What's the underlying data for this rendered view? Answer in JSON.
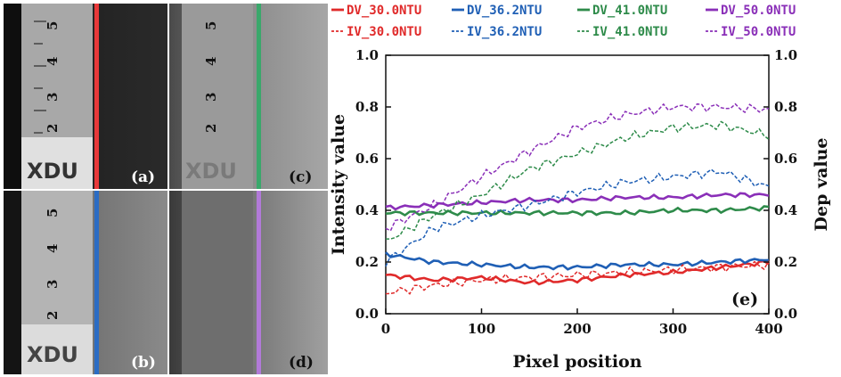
{
  "panels": [
    {
      "label": "(a)",
      "line_color": "#e8393a"
    },
    {
      "label": "(b)",
      "line_color": "#2b6cc4"
    },
    {
      "label": "(c)",
      "line_color": "#3aa86b"
    },
    {
      "label": "(d)",
      "line_color": "#b27ad9"
    }
  ],
  "ruler": {
    "marks": [
      "5",
      "4",
      "3",
      "2"
    ],
    "logo": "XDU"
  },
  "chart_data": {
    "type": "line",
    "panel_label": "(e)",
    "xlabel": "Pixel position",
    "ylabel_left": "Intensity value",
    "ylabel_right": "Dep value",
    "xlim": [
      0,
      400
    ],
    "ylim": [
      0.0,
      1.0
    ],
    "xticks": [
      "0",
      "100",
      "200",
      "300",
      "400"
    ],
    "yticks": [
      "0.0",
      "0.2",
      "0.4",
      "0.6",
      "0.8",
      "1.0"
    ],
    "x": [
      0,
      50,
      100,
      150,
      200,
      250,
      300,
      350,
      400
    ],
    "series": [
      {
        "name": "DV_30.0NTU",
        "color": "#e02a2a",
        "style": "solid",
        "values": [
          0.15,
          0.13,
          0.14,
          0.12,
          0.13,
          0.15,
          0.16,
          0.18,
          0.2
        ]
      },
      {
        "name": "DV_36.2NTU",
        "color": "#1f5fb5",
        "style": "solid",
        "values": [
          0.23,
          0.2,
          0.19,
          0.18,
          0.18,
          0.19,
          0.19,
          0.2,
          0.21
        ]
      },
      {
        "name": "DV_41.0NTU",
        "color": "#2e8b4a",
        "style": "solid",
        "values": [
          0.39,
          0.39,
          0.39,
          0.39,
          0.39,
          0.39,
          0.4,
          0.4,
          0.41
        ]
      },
      {
        "name": "DV_50.0NTU",
        "color": "#8a2fb8",
        "style": "solid",
        "values": [
          0.41,
          0.42,
          0.43,
          0.44,
          0.44,
          0.45,
          0.45,
          0.46,
          0.46
        ]
      },
      {
        "name": "IV_30.0NTU",
        "color": "#e02a2a",
        "style": "dashed",
        "values": [
          0.08,
          0.11,
          0.13,
          0.14,
          0.15,
          0.16,
          0.17,
          0.18,
          0.19
        ]
      },
      {
        "name": "IV_36.2NTU",
        "color": "#1f5fb5",
        "style": "dashed",
        "values": [
          0.2,
          0.33,
          0.38,
          0.42,
          0.47,
          0.51,
          0.53,
          0.55,
          0.49
        ]
      },
      {
        "name": "IV_41.0NTU",
        "color": "#2e8b4a",
        "style": "dashed",
        "values": [
          0.28,
          0.38,
          0.46,
          0.56,
          0.62,
          0.68,
          0.72,
          0.73,
          0.69
        ]
      },
      {
        "name": "IV_50.0NTU",
        "color": "#8a2fb8",
        "style": "dashed",
        "values": [
          0.33,
          0.42,
          0.53,
          0.63,
          0.72,
          0.77,
          0.8,
          0.8,
          0.79
        ]
      }
    ]
  }
}
